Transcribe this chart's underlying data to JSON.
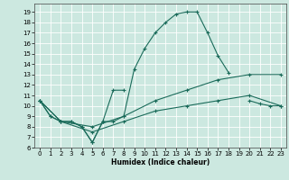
{
  "xlabel": "Humidex (Indice chaleur)",
  "bg_color": "#cce8e0",
  "grid_color": "#ffffff",
  "line_color": "#1a6b5a",
  "xlim": [
    -0.5,
    23.5
  ],
  "ylim": [
    6,
    19.8
  ],
  "yticks": [
    6,
    7,
    8,
    9,
    10,
    11,
    12,
    13,
    14,
    15,
    16,
    17,
    18,
    19
  ],
  "xticks": [
    0,
    1,
    2,
    3,
    4,
    5,
    6,
    7,
    8,
    9,
    10,
    11,
    12,
    13,
    14,
    15,
    16,
    17,
    18,
    19,
    20,
    21,
    22,
    23
  ],
  "series": [
    {
      "x": [
        0,
        1,
        2,
        3,
        4,
        5,
        6,
        7,
        8,
        9,
        10,
        11,
        12,
        13,
        14,
        15,
        16,
        17,
        18
      ],
      "y": [
        10.5,
        9.0,
        8.5,
        8.5,
        8.0,
        6.5,
        8.5,
        8.5,
        9.0,
        13.5,
        15.5,
        17.0,
        18.0,
        18.8,
        19.0,
        19.0,
        17.0,
        14.8,
        13.2
      ]
    },
    {
      "x": [
        0,
        1,
        2,
        3,
        4,
        5,
        6,
        7,
        8,
        20,
        21,
        22,
        23
      ],
      "y": [
        10.5,
        9.0,
        8.5,
        8.5,
        8.0,
        6.5,
        8.5,
        11.5,
        11.5,
        10.5,
        10.2,
        10.0,
        10.0
      ]
    },
    {
      "x": [
        0,
        2,
        5,
        8,
        11,
        14,
        17,
        20,
        23
      ],
      "y": [
        10.5,
        8.5,
        8.0,
        9.0,
        10.5,
        11.5,
        12.5,
        13.0,
        13.0
      ]
    },
    {
      "x": [
        0,
        2,
        5,
        8,
        11,
        14,
        17,
        20,
        23
      ],
      "y": [
        10.5,
        8.5,
        7.5,
        8.5,
        9.5,
        10.0,
        10.5,
        11.0,
        10.0
      ]
    }
  ]
}
